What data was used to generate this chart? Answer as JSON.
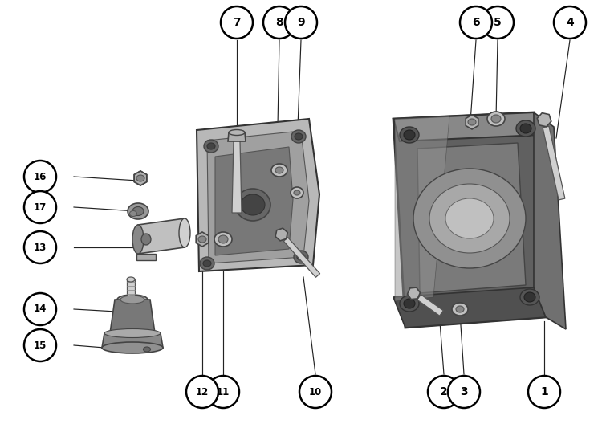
{
  "bg_color": "#ffffff",
  "fig_width": 7.5,
  "fig_height": 5.33,
  "dpi": 100,
  "label_positions": [
    [
      "16",
      50,
      220
    ],
    [
      "17",
      50,
      258
    ],
    [
      "13",
      50,
      308
    ],
    [
      "14",
      50,
      385
    ],
    [
      "15",
      50,
      430
    ],
    [
      "7",
      295,
      28
    ],
    [
      "8",
      348,
      28
    ],
    [
      "9",
      375,
      28
    ],
    [
      "10",
      393,
      488
    ],
    [
      "11",
      278,
      488
    ],
    [
      "12",
      252,
      488
    ],
    [
      "4",
      710,
      28
    ],
    [
      "5",
      620,
      28
    ],
    [
      "6",
      593,
      28
    ],
    [
      "1",
      678,
      488
    ],
    [
      "2",
      553,
      488
    ],
    [
      "3",
      578,
      488
    ]
  ],
  "leader_lines": [
    [
      "16",
      92,
      220,
      172,
      225
    ],
    [
      "17",
      92,
      258,
      170,
      263
    ],
    [
      "13",
      92,
      308,
      168,
      308
    ],
    [
      "14",
      92,
      385,
      145,
      388
    ],
    [
      "15",
      92,
      430,
      130,
      433
    ],
    [
      "7",
      295,
      50,
      295,
      175
    ],
    [
      "8",
      348,
      50,
      345,
      210
    ],
    [
      "9",
      375,
      50,
      368,
      240
    ],
    [
      "10",
      393,
      466,
      378,
      345
    ],
    [
      "11",
      278,
      466,
      278,
      305
    ],
    [
      "12",
      252,
      466,
      252,
      300
    ],
    [
      "4",
      710,
      50,
      693,
      172
    ],
    [
      "5",
      620,
      50,
      618,
      148
    ],
    [
      "6",
      593,
      50,
      586,
      152
    ],
    [
      "1",
      678,
      466,
      678,
      400
    ],
    [
      "2",
      553,
      466,
      547,
      388
    ],
    [
      "3",
      578,
      466,
      573,
      390
    ]
  ]
}
